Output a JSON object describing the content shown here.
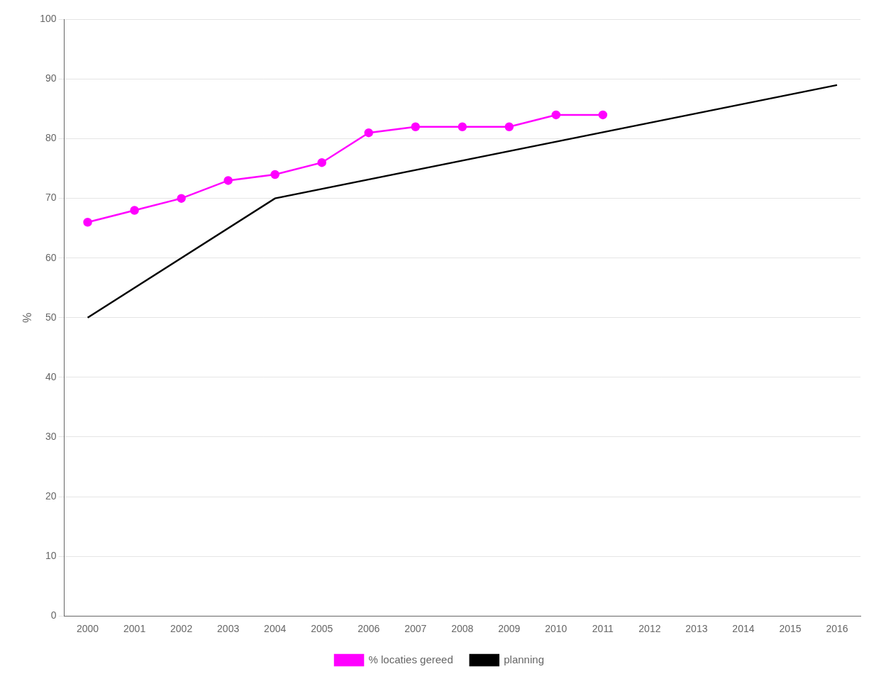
{
  "chart_data": {
    "type": "line",
    "ylabel": "%",
    "series": [
      {
        "name": "% locaties gereed",
        "color": "#FF00FF",
        "marker": "circle",
        "x": [
          2000,
          2001,
          2002,
          2003,
          2004,
          2005,
          2006,
          2007,
          2008,
          2009,
          2010,
          2011
        ],
        "values": [
          66,
          68,
          70,
          73,
          74,
          76,
          81,
          82,
          82,
          82,
          84,
          84
        ]
      },
      {
        "name": "planning",
        "color": "#000000",
        "marker": "none",
        "x": [
          2000,
          2004,
          2016
        ],
        "values": [
          50,
          70,
          89
        ]
      }
    ],
    "xlim": [
      1999.5,
      2016.5
    ],
    "xticks": [
      2000,
      2001,
      2002,
      2003,
      2004,
      2005,
      2006,
      2007,
      2008,
      2009,
      2010,
      2011,
      2012,
      2013,
      2014,
      2015,
      2016
    ],
    "ylim": [
      0,
      100
    ],
    "yticks": [
      0,
      10,
      20,
      30,
      40,
      50,
      60,
      70,
      80,
      90,
      100
    ],
    "grid": "y",
    "legend": "bottom"
  }
}
